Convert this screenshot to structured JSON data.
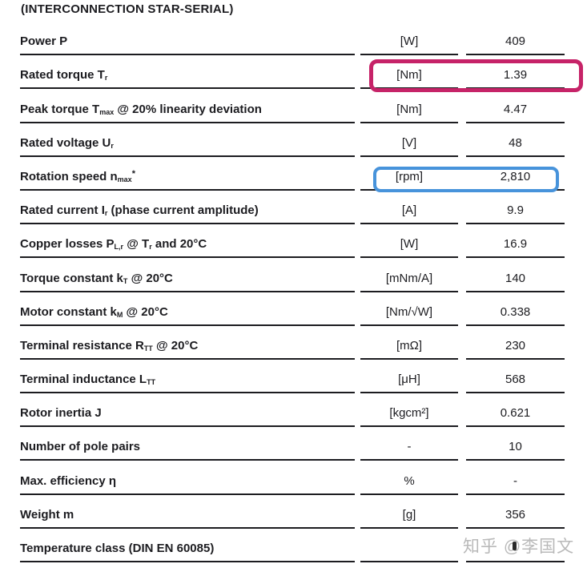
{
  "page": {
    "title": "(INTERCONNECTION STAR-SERIAL)"
  },
  "colors": {
    "text": "#1c1c20",
    "rule": "#1c1c20",
    "background": "#ffffff",
    "highlight_magenta": "#C62368",
    "highlight_blue": "#4793DB",
    "watermark": "#b9b9b9"
  },
  "watermark": {
    "text": "知乎 @李国文"
  },
  "table": {
    "rows": [
      {
        "label": [
          {
            "t": "Power P"
          }
        ],
        "unit": "[W]",
        "value": "409",
        "highlight": null
      },
      {
        "label": [
          {
            "t": "Rated torque T"
          },
          {
            "sub": "r"
          }
        ],
        "unit": "[Nm]",
        "value": "1.39",
        "highlight": "magenta"
      },
      {
        "label": [
          {
            "t": "Peak torque T"
          },
          {
            "sub": "max"
          },
          {
            "t": "  @ 20% linearity deviation"
          }
        ],
        "unit": "[Nm]",
        "value": "4.47",
        "highlight": null
      },
      {
        "label": [
          {
            "t": "Rated voltage U"
          },
          {
            "sub": "r"
          }
        ],
        "unit": "[V]",
        "value": "48",
        "highlight": null
      },
      {
        "label": [
          {
            "t": "Rotation speed n"
          },
          {
            "sub": "max"
          },
          {
            "sup": "*"
          }
        ],
        "unit": "[rpm]",
        "value": "2,810",
        "highlight": "blue"
      },
      {
        "label": [
          {
            "t": "Rated current I"
          },
          {
            "sub": "r"
          },
          {
            "t": " (phase current amplitude)"
          }
        ],
        "unit": "[A]",
        "value": "9.9",
        "highlight": null
      },
      {
        "label": [
          {
            "t": "Copper losses P"
          },
          {
            "sub": "L,r"
          },
          {
            "t": " @ T"
          },
          {
            "sub": "r"
          },
          {
            "t": " and 20°C"
          }
        ],
        "unit": "[W]",
        "value": "16.9",
        "highlight": null
      },
      {
        "label": [
          {
            "t": "Torque constant k"
          },
          {
            "sub": "T"
          },
          {
            "t": " @ 20°C"
          }
        ],
        "unit": "[mNm/A]",
        "value": "140",
        "highlight": null
      },
      {
        "label": [
          {
            "t": "Motor constant k"
          },
          {
            "sub": "M"
          },
          {
            "t": " @ 20°C"
          }
        ],
        "unit": "[Nm/√W]",
        "value": "0.338",
        "highlight": null
      },
      {
        "label": [
          {
            "t": "Terminal resistance R"
          },
          {
            "sub": "TT"
          },
          {
            "t": " @ 20°C"
          }
        ],
        "unit": "[mΩ]",
        "value": "230",
        "highlight": null
      },
      {
        "label": [
          {
            "t": "Terminal inductance L"
          },
          {
            "sub": "TT"
          }
        ],
        "unit": "[μH]",
        "value": "568",
        "highlight": null
      },
      {
        "label": [
          {
            "t": "Rotor inertia J"
          }
        ],
        "unit": "[kgcm²]",
        "value": "0.621",
        "highlight": null
      },
      {
        "label": [
          {
            "t": "Number of pole pairs"
          }
        ],
        "unit": "-",
        "value": "10",
        "highlight": null
      },
      {
        "label": [
          {
            "t": "Max. efficiency η"
          }
        ],
        "unit": "%",
        "value": "-",
        "highlight": null
      },
      {
        "label": [
          {
            "t": "Weight m"
          }
        ],
        "unit": "[g]",
        "value": "356",
        "highlight": null
      },
      {
        "label": [
          {
            "t": "Temperature class (DIN EN 60085)"
          }
        ],
        "unit": "",
        "value": "",
        "highlight": null
      }
    ]
  }
}
